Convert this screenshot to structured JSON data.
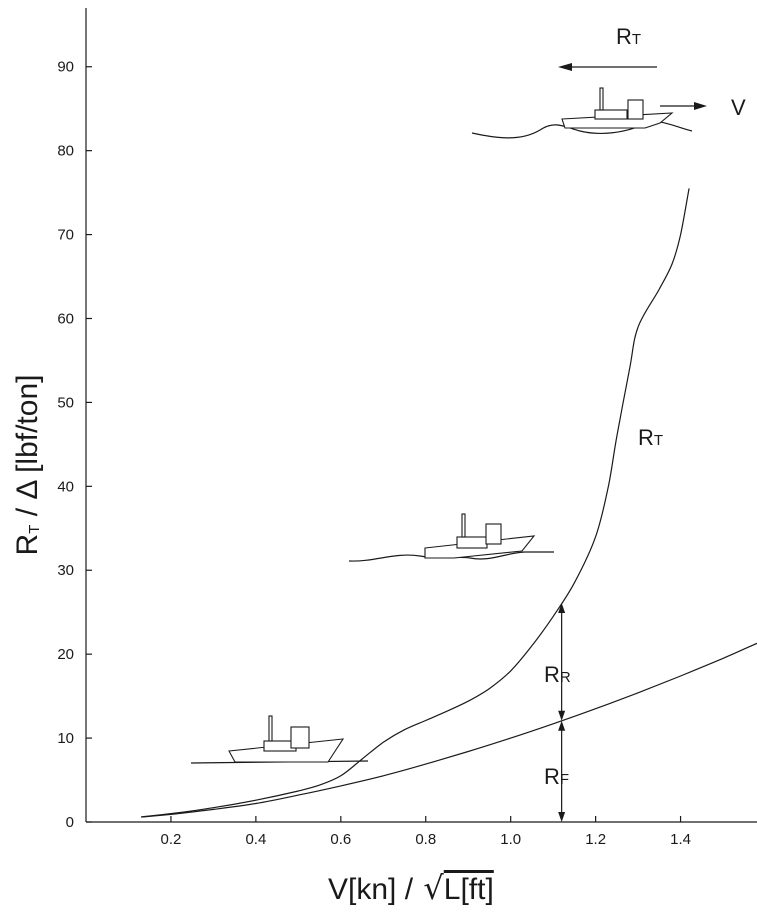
{
  "chart_data": {
    "type": "line",
    "xlabel": {
      "main": "V[kn] / ",
      "radical": "√",
      "under": "L[ft]"
    },
    "ylabel": {
      "main": "R",
      "sub": "T",
      "rest": " / Δ  [lbf/ton]"
    },
    "xlim": [
      0.0,
      1.58
    ],
    "ylim": [
      0,
      97
    ],
    "x_ticks": [
      "0.2",
      "0.4",
      "0.6",
      "0.8",
      "1.0",
      "1.2",
      "1.4"
    ],
    "x_tick_values": [
      0.2,
      0.4,
      0.6,
      0.8,
      1.0,
      1.2,
      1.4
    ],
    "y_ticks": [
      "0",
      "10",
      "20",
      "30",
      "40",
      "50",
      "60",
      "70",
      "80",
      "90"
    ],
    "y_tick_values": [
      0,
      10,
      20,
      30,
      40,
      50,
      60,
      70,
      80,
      90
    ],
    "grid": false,
    "series": [
      {
        "name": "RT",
        "x": [
          0.13,
          0.2,
          0.3,
          0.4,
          0.5,
          0.55,
          0.6,
          0.65,
          0.7,
          0.75,
          0.8,
          0.85,
          0.9,
          0.95,
          1.0,
          1.05,
          1.1,
          1.15,
          1.2,
          1.23,
          1.25,
          1.28,
          1.3,
          1.35,
          1.38,
          1.4,
          1.42
        ],
        "y": [
          0.6,
          1.0,
          1.7,
          2.6,
          3.7,
          4.4,
          5.5,
          7.5,
          9.5,
          11.0,
          12.1,
          13.2,
          14.4,
          15.9,
          18.0,
          21.0,
          24.5,
          28.5,
          34.0,
          40.0,
          46.0,
          54.0,
          59.0,
          63.5,
          66.5,
          70.0,
          75.5
        ]
      },
      {
        "name": "RF",
        "x": [
          0.13,
          0.2,
          0.3,
          0.4,
          0.5,
          0.6,
          0.7,
          0.8,
          0.9,
          1.0,
          1.1,
          1.2,
          1.3,
          1.4,
          1.5,
          1.58
        ],
        "y": [
          0.6,
          0.9,
          1.5,
          2.2,
          3.2,
          4.3,
          5.5,
          6.9,
          8.4,
          10.0,
          11.7,
          13.5,
          15.4,
          17.4,
          19.5,
          21.3
        ]
      }
    ],
    "annotations": {
      "rt_curve": {
        "main": "R",
        "sub": "T"
      },
      "rt_arrow": {
        "main": "R",
        "sub": "T"
      },
      "velocity": "V",
      "rr": {
        "main": "R",
        "sub": "R"
      },
      "rf": {
        "main": "R",
        "sub": "F"
      },
      "gap_x": 1.12
    }
  }
}
